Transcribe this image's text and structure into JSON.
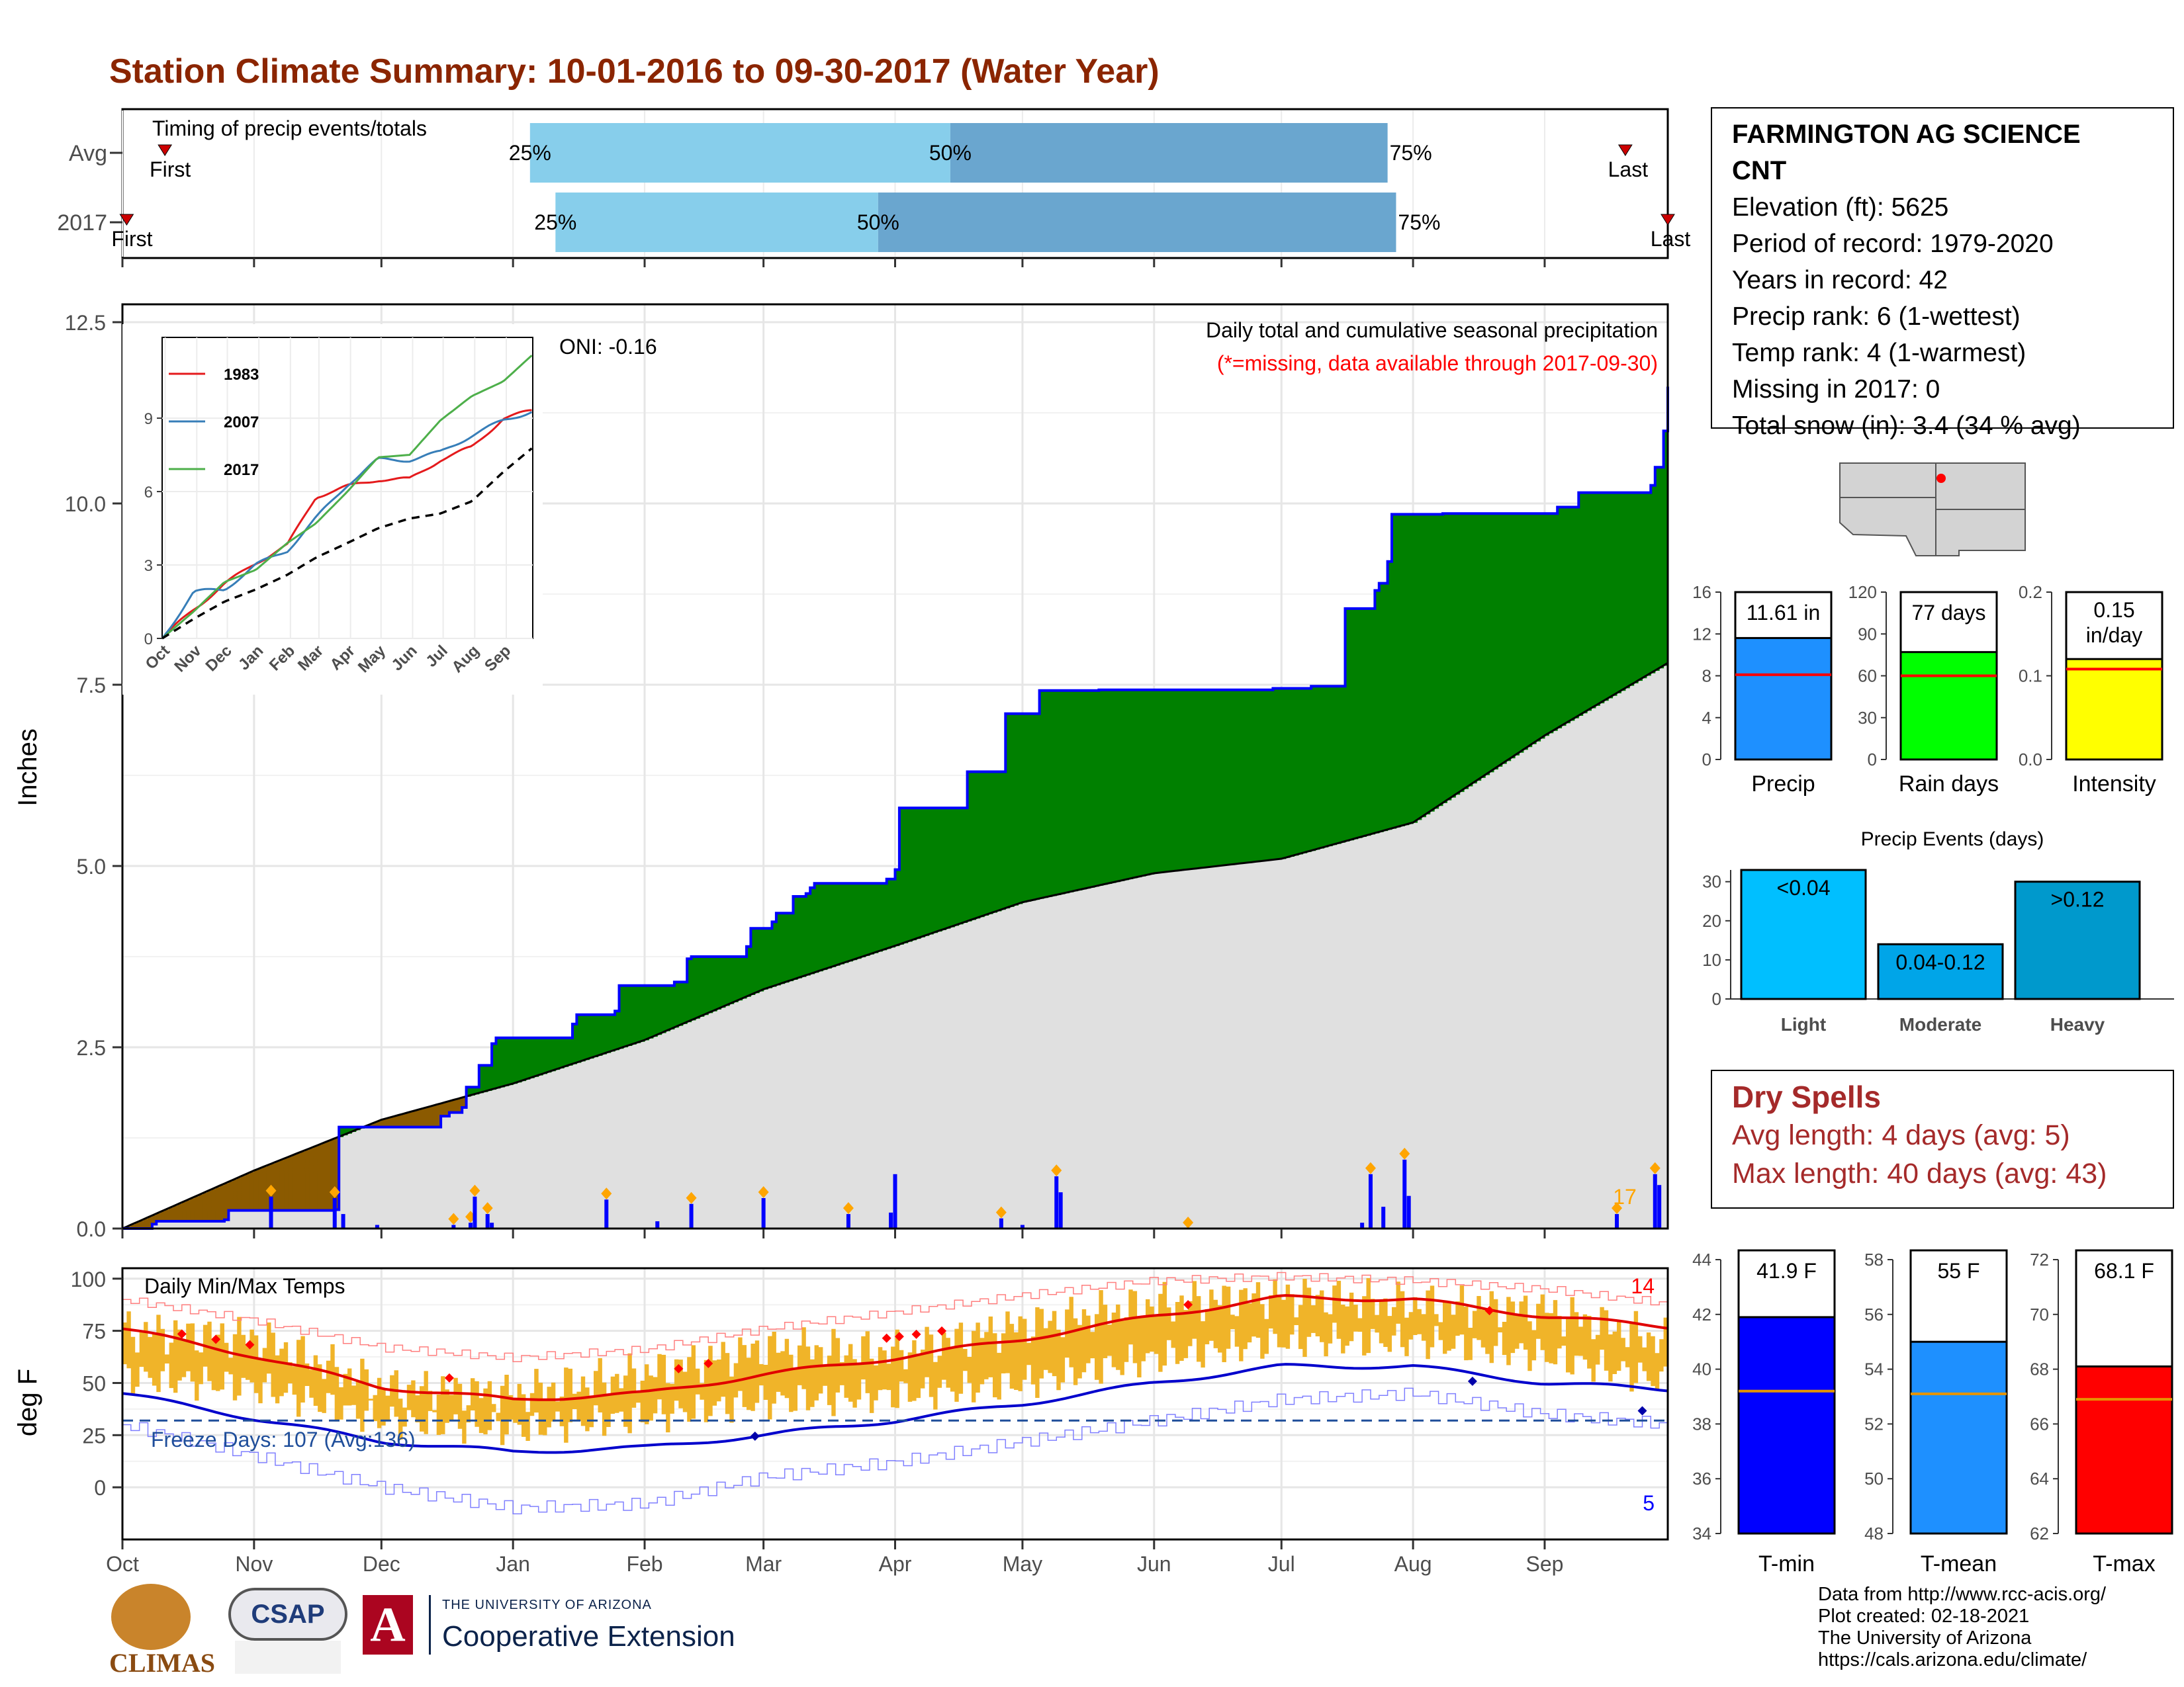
{
  "title": "Station Climate Summary: 10-01-2016 to 09-30-2017 (Water Year)",
  "station": {
    "name_line1": "FARMINGTON AG SCIENCE",
    "name_line2": "CNT",
    "elevation": "Elevation (ft): 5625",
    "period": "Period of record: 1979-2020",
    "years": "Years in record: 42",
    "precip_rank": "Precip rank: 6 (1-wettest)",
    "temp_rank": "Temp rank: 4 (1-warmest)",
    "missing": "Missing in 2017: 0",
    "snow": "Total snow (in): 3.4 (34 % avg)"
  },
  "dry_spells": {
    "title": "Dry Spells",
    "avg": "Avg length: 4 days (avg: 5)",
    "max": "Max length: 40 days (avg: 43)"
  },
  "footer": {
    "line1": "Data from http://www.rcc-acis.org/",
    "line2": "Plot created: 02-18-2021",
    "line3": "The University of Arizona",
    "line4": "https://cals.arizona.edu/climate/"
  },
  "logos": {
    "climas": "CLIMAS",
    "csap": "CSAP",
    "ua_small": "THE UNIVERSITY OF ARIZONA",
    "ua_big": "Cooperative Extension"
  },
  "chart_data": [
    {
      "id": "timing",
      "type": "bar",
      "label": "Timing of precip events/totals",
      "rows": [
        {
          "name": "Avg",
          "first": "First",
          "last": "Last",
          "first_day": 10,
          "last_day": 354,
          "p25": 96,
          "p50": 195,
          "p75": 298
        },
        {
          "name": "2017",
          "first": "First",
          "last": "Last",
          "first_day": 1,
          "last_day": 364,
          "p25": 102,
          "p50": 178,
          "p75": 300
        }
      ],
      "pct_labels": [
        "25%",
        "50%",
        "75%"
      ],
      "colors": {
        "light": "#87ceeb",
        "dark": "#6aa6cf",
        "marker": "#cc0000"
      }
    },
    {
      "id": "precip",
      "type": "area",
      "ylabel": "Inches",
      "ylim": [
        0,
        12.5
      ],
      "yticks": [
        "0.0",
        "2.5",
        "5.0",
        "7.5",
        "10.0",
        "12.5"
      ],
      "xticks": [
        "Oct",
        "Nov",
        "Dec",
        "Jan",
        "Feb",
        "Mar",
        "Apr",
        "May",
        "Jun",
        "Jul",
        "Aug",
        "Sep"
      ],
      "annotation": "Daily total and cumulative seasonal precipitation",
      "missing_note": "(*=missing, data available through 2017-09-30)",
      "oni": "ONI: -0.16",
      "count_label": "17",
      "avg_cumulative": {
        "x": [
          0,
          31,
          61,
          92,
          123,
          151,
          182,
          212,
          243,
          273,
          304,
          335,
          364
        ],
        "y": [
          0,
          0.8,
          1.5,
          2.0,
          2.6,
          3.3,
          3.9,
          4.5,
          4.9,
          5.1,
          5.6,
          6.8,
          7.8
        ]
      },
      "obs_cumulative": {
        "x": [
          0,
          7,
          8,
          24,
          25,
          50,
          51,
          75,
          77,
          80,
          81,
          84,
          87,
          88,
          106,
          107,
          116,
          117,
          130,
          133,
          134,
          147,
          148,
          153,
          154,
          158,
          161,
          162,
          163,
          180,
          182,
          183,
          198,
          199,
          207,
          208,
          215,
          216,
          222,
          223,
          230,
          232,
          271,
          280,
          288,
          295,
          296,
          298,
          299,
          311,
          338,
          343,
          360,
          361,
          363,
          364
        ],
        "y": [
          0,
          0.06,
          0.1,
          0.12,
          0.25,
          0.26,
          1.4,
          1.55,
          1.6,
          1.67,
          1.95,
          2.25,
          2.55,
          2.63,
          2.82,
          2.95,
          3.0,
          3.35,
          3.4,
          3.72,
          3.75,
          3.89,
          4.14,
          4.23,
          4.35,
          4.58,
          4.62,
          4.7,
          4.76,
          4.82,
          4.95,
          5.8,
          5.8,
          6.3,
          6.3,
          7.1,
          7.1,
          7.42,
          7.42,
          7.42,
          7.43,
          7.43,
          7.45,
          7.48,
          8.55,
          8.8,
          8.9,
          9.2,
          9.85,
          9.86,
          9.95,
          10.15,
          10.25,
          10.5,
          11.0,
          11.61
        ]
      },
      "daily_events": [
        {
          "day": 35,
          "v": 0.44,
          "m": true
        },
        {
          "day": 50,
          "v": 0.42,
          "m": true
        },
        {
          "day": 52,
          "v": 0.2,
          "m": false
        },
        {
          "day": 60,
          "v": 0.05,
          "m": false
        },
        {
          "day": 78,
          "v": 0.05,
          "m": true
        },
        {
          "day": 82,
          "v": 0.08,
          "m": true
        },
        {
          "day": 83,
          "v": 0.44,
          "m": true
        },
        {
          "day": 86,
          "v": 0.2,
          "m": true
        },
        {
          "day": 87,
          "v": 0.08,
          "m": false
        },
        {
          "day": 114,
          "v": 0.4,
          "m": true
        },
        {
          "day": 126,
          "v": 0.1,
          "m": false
        },
        {
          "day": 134,
          "v": 0.34,
          "m": true
        },
        {
          "day": 151,
          "v": 0.42,
          "m": true
        },
        {
          "day": 171,
          "v": 0.2,
          "m": true
        },
        {
          "day": 181,
          "v": 0.22,
          "m": false
        },
        {
          "day": 182,
          "v": 0.75,
          "m": false
        },
        {
          "day": 207,
          "v": 0.14,
          "m": true
        },
        {
          "day": 212,
          "v": 0.05,
          "m": false
        },
        {
          "day": 220,
          "v": 0.72,
          "m": true
        },
        {
          "day": 221,
          "v": 0.5,
          "m": false
        },
        {
          "day": 251,
          "v": 0.0,
          "m": true
        },
        {
          "day": 292,
          "v": 0.08,
          "m": false
        },
        {
          "day": 294,
          "v": 0.75,
          "m": true
        },
        {
          "day": 297,
          "v": 0.3,
          "m": false
        },
        {
          "day": 302,
          "v": 0.95,
          "m": true
        },
        {
          "day": 303,
          "v": 0.45,
          "m": false
        },
        {
          "day": 352,
          "v": 0.2,
          "m": true
        },
        {
          "day": 361,
          "v": 0.75,
          "m": true
        },
        {
          "day": 362,
          "v": 0.6,
          "m": false
        }
      ],
      "colors": {
        "above": "#008000",
        "below": "#8b5a00",
        "avg_fill": "#e0e0e0",
        "line": "#0000ff",
        "daily": "#0000ff",
        "marker": "#ffa500"
      }
    },
    {
      "id": "inset",
      "type": "line",
      "xticks": [
        "Oct",
        "Nov",
        "Dec",
        "Jan",
        "Feb",
        "Mar",
        "Apr",
        "May",
        "Jun",
        "Jul",
        "Aug",
        "Sep"
      ],
      "ylim": [
        0,
        12
      ],
      "yticks": [
        "0",
        "3",
        "6",
        "9"
      ],
      "series": [
        {
          "name": "1983",
          "color": "#e41a1c",
          "x": [
            0,
            31,
            61,
            92,
            123,
            151,
            182,
            212,
            243,
            273,
            304,
            335,
            364
          ],
          "y": [
            0,
            1.2,
            2.2,
            3.1,
            3.8,
            5.8,
            6.2,
            6.5,
            6.5,
            7.3,
            7.8,
            9.0,
            9.3
          ]
        },
        {
          "name": "2007",
          "color": "#377eb8",
          "x": [
            0,
            31,
            61,
            92,
            123,
            151,
            182,
            212,
            243,
            273,
            304,
            335,
            364
          ],
          "y": [
            0,
            1.9,
            2.0,
            3.0,
            3.6,
            4.9,
            6.3,
            7.3,
            7.3,
            7.6,
            8.3,
            8.9,
            9.3
          ]
        },
        {
          "name": "2017",
          "color": "#4daf4a",
          "x": [
            0,
            31,
            61,
            92,
            123,
            151,
            182,
            212,
            243,
            273,
            304,
            335,
            364
          ],
          "y": [
            0,
            1.1,
            2.3,
            2.8,
            3.9,
            4.7,
            6.0,
            7.4,
            7.5,
            8.9,
            9.9,
            10.5,
            11.6
          ]
        },
        {
          "name": "",
          "color": "#000000",
          "x": [
            0,
            31,
            61,
            92,
            123,
            151,
            182,
            212,
            243,
            273,
            304,
            335,
            364
          ],
          "y": [
            0,
            0.8,
            1.5,
            2.0,
            2.6,
            3.3,
            3.9,
            4.5,
            4.9,
            5.1,
            5.6,
            6.8,
            7.8
          ]
        }
      ]
    },
    {
      "id": "temps",
      "type": "line",
      "title": "Daily Min/Max Temps",
      "ylabel": "deg F",
      "ylim": [
        -25,
        105
      ],
      "yticks": [
        "0",
        "25",
        "50",
        "75",
        "100"
      ],
      "xticks": [
        "Oct",
        "Nov",
        "Dec",
        "Jan",
        "Feb",
        "Mar",
        "Apr",
        "May",
        "Jun",
        "Jul",
        "Aug",
        "Sep"
      ],
      "freeze_label": "Freeze Days: 107 (Avg:136)",
      "freeze_line": 32,
      "hot_count": "14",
      "cold_count": "5",
      "avg_max": {
        "x": [
          0,
          31,
          61,
          92,
          123,
          151,
          182,
          212,
          243,
          273,
          304,
          335,
          364
        ],
        "y": [
          76,
          63,
          48,
          42,
          45,
          54,
          62,
          71,
          82,
          91,
          90,
          82,
          77
        ]
      },
      "avg_min": {
        "x": [
          0,
          31,
          61,
          92,
          123,
          151,
          182,
          212,
          243,
          273,
          304,
          335,
          364
        ],
        "y": [
          45,
          33,
          22,
          17,
          19,
          25,
          32,
          40,
          50,
          58,
          58,
          50,
          47
        ]
      },
      "rec_max": {
        "x": [
          0,
          31,
          61,
          92,
          123,
          151,
          182,
          212,
          243,
          273,
          304,
          335,
          364
        ],
        "y": [
          90,
          80,
          67,
          62,
          66,
          76,
          84,
          92,
          99,
          101,
          99,
          95,
          88
        ]
      },
      "rec_min": {
        "x": [
          0,
          31,
          61,
          92,
          123,
          151,
          182,
          212,
          243,
          273,
          304,
          335,
          364
        ],
        "y": [
          30,
          15,
          0,
          -10,
          -8,
          5,
          12,
          22,
          32,
          42,
          45,
          35,
          30
        ]
      },
      "obs_max": {
        "x": [
          0,
          31,
          61,
          92,
          123,
          151,
          182,
          212,
          243,
          273,
          304,
          335,
          364
        ],
        "y": [
          75,
          72,
          48,
          45,
          55,
          67,
          65,
          78,
          88,
          92,
          88,
          85,
          70
        ]
      },
      "obs_min": {
        "x": [
          0,
          31,
          61,
          92,
          123,
          151,
          182,
          212,
          243,
          273,
          304,
          335,
          364
        ],
        "y": [
          45,
          40,
          24,
          20,
          26,
          33,
          36,
          42,
          54,
          62,
          62,
          55,
          42
        ]
      },
      "colors": {
        "band": "#f0b429",
        "max_line": "#e00000",
        "min_line": "#0000cc"
      }
    },
    {
      "id": "precip_bars",
      "type": "bar",
      "categories": [
        "Precip",
        "Rain days",
        "Intensity"
      ],
      "values": [
        11.61,
        77,
        0.15
      ],
      "averages": [
        8.1,
        60,
        0.135
      ],
      "labels": [
        "11.61 in",
        "77 days",
        "0.15 in/day"
      ],
      "ylims": [
        [
          0,
          16
        ],
        [
          0,
          120
        ],
        [
          0,
          0.25
        ]
      ],
      "yticks": [
        [
          "0",
          "4",
          "8",
          "12",
          "16"
        ],
        [
          "0",
          "30",
          "60",
          "90",
          "120"
        ],
        [
          "0.0",
          "0.1",
          "0.2"
        ]
      ],
      "colors": [
        "#1e90ff",
        "#00ff00",
        "#ffff00"
      ]
    },
    {
      "id": "precip_events",
      "type": "bar",
      "title": "Precip Events (days)",
      "categories": [
        "Light",
        "Moderate",
        "Heavy"
      ],
      "bar_labels": [
        "<0.04",
        "0.04-0.12",
        ">0.12"
      ],
      "values": [
        33,
        14,
        30
      ],
      "ylim": [
        0,
        33
      ],
      "yticks": [
        "0",
        "10",
        "20",
        "30"
      ],
      "colors": [
        "#00bfff",
        "#00a5e8",
        "#0099cc"
      ]
    },
    {
      "id": "temp_bars",
      "type": "bar",
      "categories": [
        "T-min",
        "T-mean",
        "T-max"
      ],
      "values": [
        41.9,
        55,
        68.1
      ],
      "averages": [
        39.2,
        53.1,
        66.9
      ],
      "labels": [
        "41.9 F",
        "55 F",
        "68.1 F"
      ],
      "ylims": [
        [
          34,
          44
        ],
        [
          48,
          58
        ],
        [
          62,
          72
        ]
      ],
      "yticks": [
        [
          "34",
          "36",
          "38",
          "40",
          "42",
          "44"
        ],
        [
          "48",
          "50",
          "52",
          "54",
          "56",
          "58"
        ],
        [
          "62",
          "64",
          "66",
          "68",
          "70",
          "72"
        ]
      ],
      "colors": [
        "#0000ff",
        "#1e90ff",
        "#ff0000"
      ]
    }
  ]
}
